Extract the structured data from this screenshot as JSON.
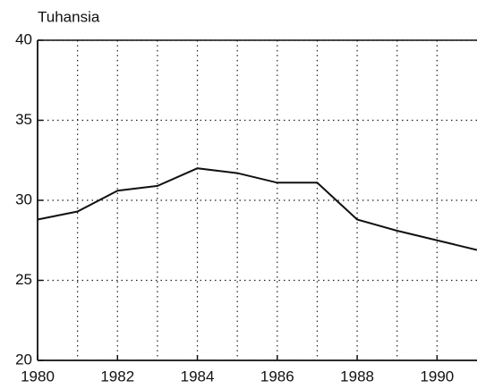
{
  "chart_data": {
    "type": "line",
    "title": "Tuhansia",
    "x": [
      1980,
      1981,
      1982,
      1983,
      1984,
      1985,
      1986,
      1987,
      1988,
      1989,
      1990,
      1991
    ],
    "series": [
      {
        "color": "#111111",
        "values": [
          28.8,
          29.3,
          30.6,
          30.9,
          32.0,
          31.7,
          31.1,
          31.1,
          28.8,
          28.1,
          27.5,
          26.9
        ]
      }
    ],
    "xlim": [
      1980,
      1991
    ],
    "xticks": [
      1980,
      1982,
      1984,
      1986,
      1988,
      1990
    ],
    "xgrid": [
      1981,
      1982,
      1983,
      1984,
      1985,
      1986,
      1987,
      1988,
      1989,
      1990
    ],
    "ylim": [
      20,
      40
    ],
    "yticks": [
      20,
      25,
      30,
      35,
      40
    ],
    "grid": true
  }
}
